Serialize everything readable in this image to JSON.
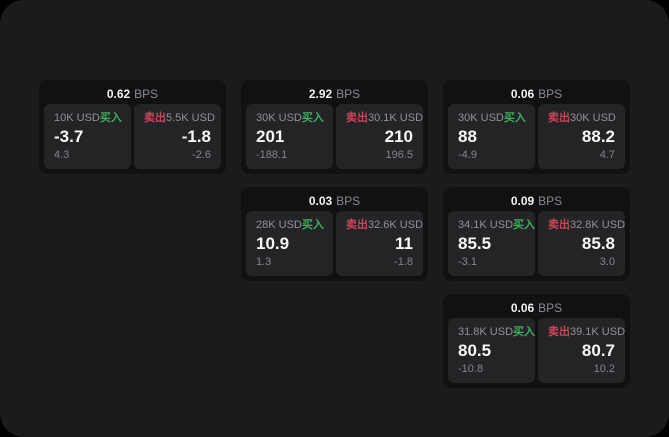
{
  "labels": {
    "bps_unit": "BPS",
    "buy": "买入",
    "sell": "卖出"
  },
  "colors": {
    "background": "#1b1b1d",
    "card": "#111113",
    "panel": "#242427",
    "buy": "#3fae5c",
    "sell": "#cc4458"
  },
  "cards": [
    {
      "bps": "0.62",
      "buy": {
        "amount": "10K USD",
        "price": "-3.7",
        "change": "4.3"
      },
      "sell": {
        "amount": "5.5K USD",
        "price": "-1.8",
        "change": "-2.6"
      }
    },
    {
      "bps": "2.92",
      "buy": {
        "amount": "30K USD",
        "price": "201",
        "change": "-188.1"
      },
      "sell": {
        "amount": "30.1K USD",
        "price": "210",
        "change": "196.5"
      }
    },
    {
      "bps": "0.06",
      "buy": {
        "amount": "30K USD",
        "price": "88",
        "change": "-4.9"
      },
      "sell": {
        "amount": "30K USD",
        "price": "88.2",
        "change": "4.7"
      }
    },
    {
      "bps": "0.03",
      "buy": {
        "amount": "28K USD",
        "price": "10.9",
        "change": "1.3"
      },
      "sell": {
        "amount": "32.6K USD",
        "price": "11",
        "change": "-1.8"
      }
    },
    {
      "bps": "0.09",
      "buy": {
        "amount": "34.1K USD",
        "price": "85.5",
        "change": "-3.1"
      },
      "sell": {
        "amount": "32.8K USD",
        "price": "85.8",
        "change": "3.0"
      }
    },
    {
      "bps": "0.06",
      "buy": {
        "amount": "31.8K USD",
        "price": "80.5",
        "change": "-10.8"
      },
      "sell": {
        "amount": "39.1K USD",
        "price": "80.7",
        "change": "10.2"
      }
    }
  ]
}
